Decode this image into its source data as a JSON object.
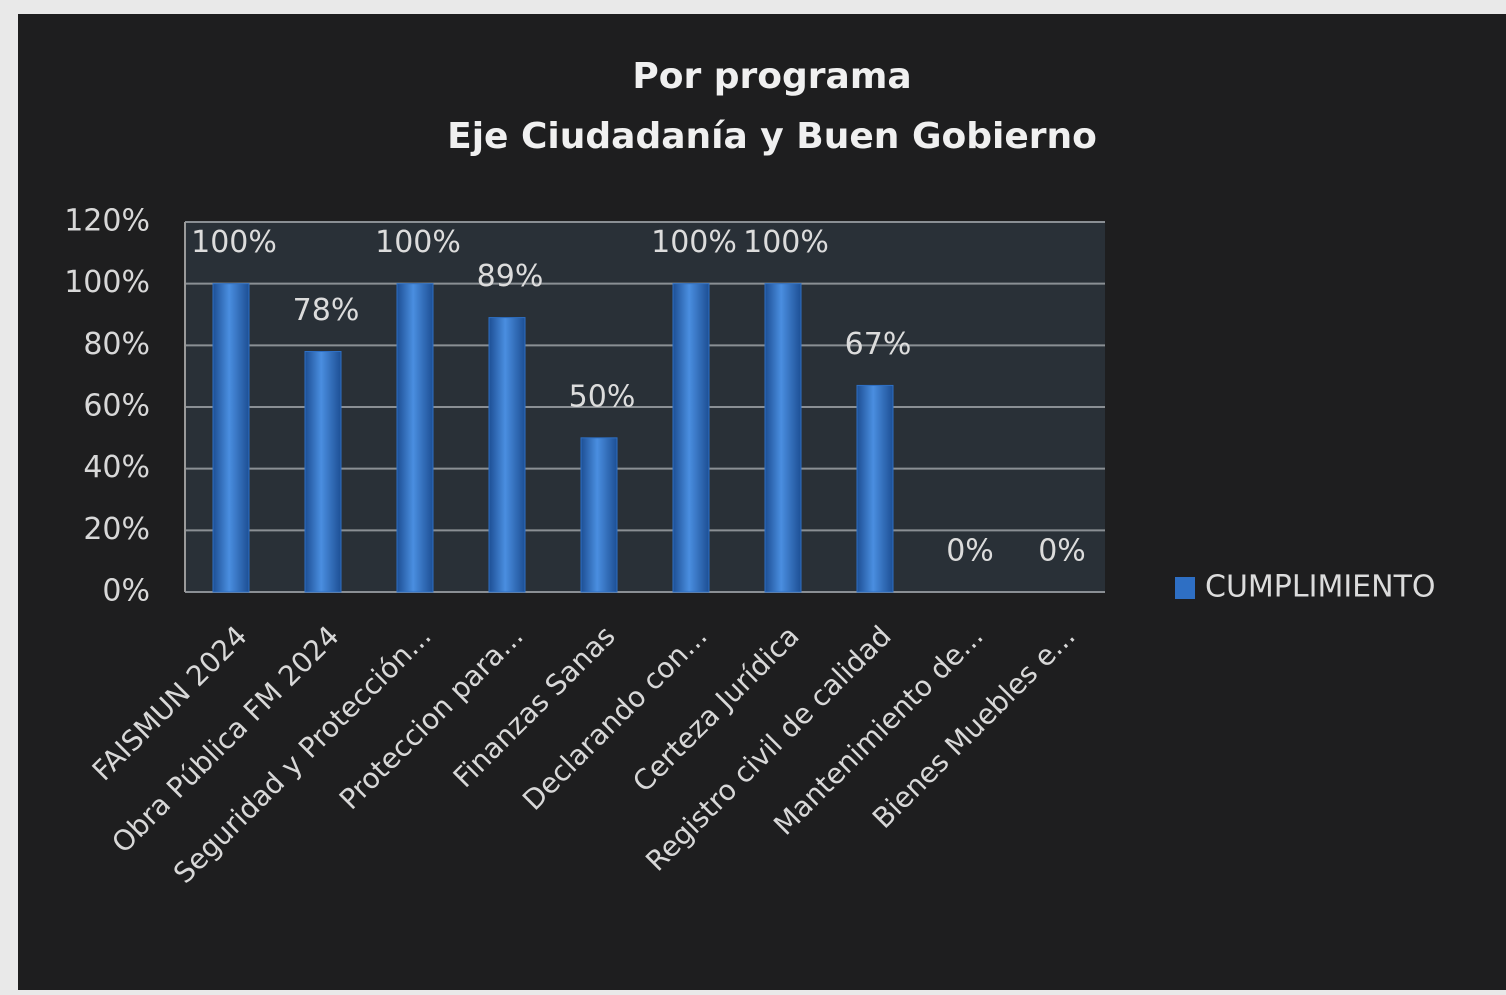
{
  "chart_data": {
    "type": "bar",
    "title": "Por programa",
    "subtitle": "Eje Ciudadanía y Buen Gobierno",
    "categories": [
      "FAISMUN 2024",
      "Obra Pública FM 2024",
      "Seguridad y Protección...",
      "Proteccion para...",
      "Finanzas Sanas",
      "Declarando con...",
      "Certeza Jurídica",
      "Registro civil de calidad",
      "Mantenimiento de...",
      "Bienes Muebles e..."
    ],
    "series": [
      {
        "name": "CUMPLIMIENTO",
        "color": "#2e6fc4",
        "values": [
          100,
          78,
          100,
          89,
          50,
          100,
          100,
          67,
          0,
          0
        ],
        "value_labels": [
          "100%",
          "78%",
          "100%",
          "89%",
          "50%",
          "100%",
          "100%",
          "67%",
          "0%",
          "0%"
        ]
      }
    ],
    "ylim": [
      0,
      120
    ],
    "yticks": [
      {
        "value": 0,
        "label": "0%"
      },
      {
        "value": 20,
        "label": "20%"
      },
      {
        "value": 40,
        "label": "40%"
      },
      {
        "value": 60,
        "label": "60%"
      },
      {
        "value": 80,
        "label": "80%"
      },
      {
        "value": 100,
        "label": "100%"
      },
      {
        "value": 120,
        "label": "120%"
      }
    ],
    "grid": true,
    "legend": "right"
  }
}
